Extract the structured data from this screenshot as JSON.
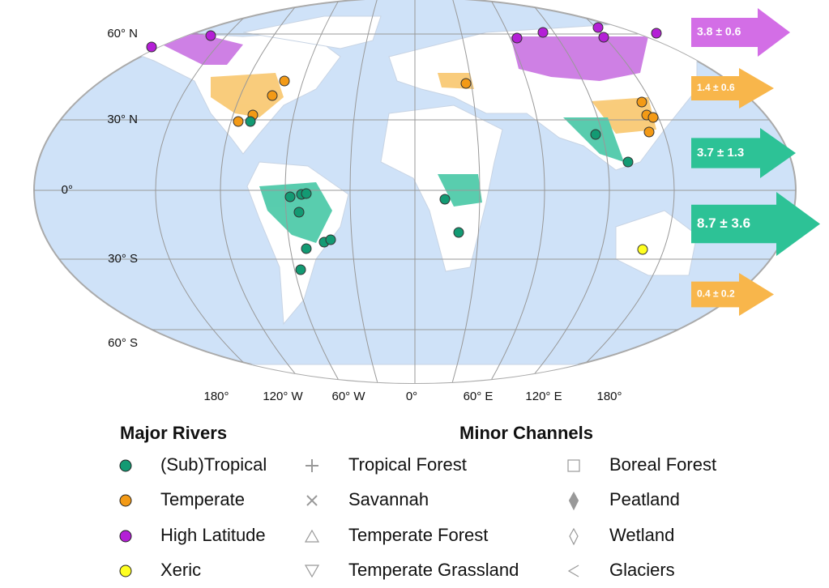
{
  "map": {
    "lat_labels": [
      "60° N",
      "30° N",
      "0°",
      "30° S",
      "60° S"
    ],
    "lon_labels": [
      "180°",
      "120° W",
      "60° W",
      "0°",
      "60° E",
      "120° E",
      "180°"
    ],
    "flux_arrows": [
      {
        "label": "3.8  ±  0.6",
        "color": "#d36ee6"
      },
      {
        "label": "1.4  ±  0.6",
        "color": "#f8b64b"
      },
      {
        "label": "3.7  ±  1.3",
        "color": "#2dc296"
      },
      {
        "label": "8.7  ±  3.6",
        "color": "#2dc296"
      },
      {
        "label": "0.4  ±  0.2",
        "color": "#f8b64b"
      }
    ]
  },
  "legend": {
    "major_rivers": {
      "title": "Major Rivers",
      "items": [
        "(Sub)Tropical",
        "Temperate",
        "High Latitude",
        "Xeric"
      ]
    },
    "minor_channels": {
      "title": "Minor Channels",
      "items": [
        "Tropical Forest",
        "Savannah",
        "Temperate Forest",
        "Temperate Grassland",
        "Boreal Forest",
        "Peatland",
        "Wetland",
        "Glaciers"
      ]
    }
  }
}
